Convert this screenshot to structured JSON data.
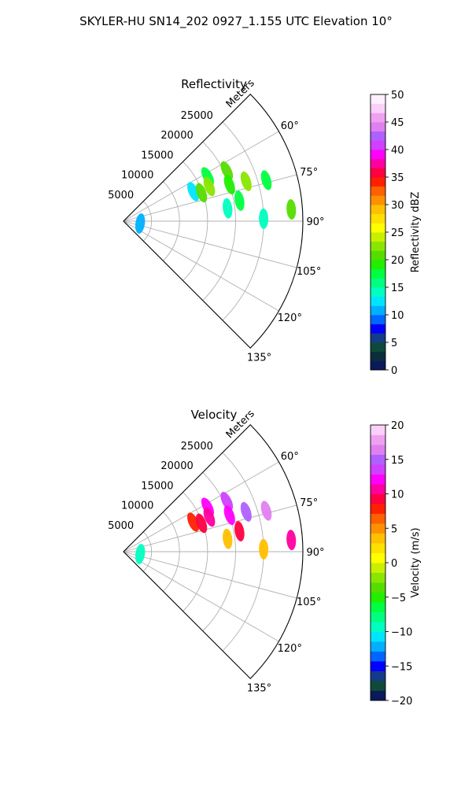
{
  "figure": {
    "title": "SKYLER-HU  SN14_202  0927_1.155 UTC Elevation 10°"
  },
  "chart_data": [
    {
      "type": "heatmap",
      "subtype": "polar-sector (PPI)",
      "title": "Reflectivity",
      "radial_label": "Meters",
      "theta_range_deg": [
        45,
        135
      ],
      "r_max": 32000,
      "radial_ticks": [
        5000,
        10000,
        15000,
        20000,
        25000
      ],
      "radial_tick_labels": [
        "5000",
        "10000",
        "15000",
        "20000",
        "25000"
      ],
      "angle_ticks": [
        45,
        60,
        75,
        90,
        105,
        120,
        135
      ],
      "angle_tick_labels": [
        "",
        "60°",
        "75°",
        "90°",
        "105°",
        "120°",
        "135°"
      ],
      "grid": true,
      "colorbar": {
        "label": "Reflectivity dBZ",
        "min": 0,
        "max": 50,
        "ticks": [
          0,
          5,
          10,
          15,
          20,
          25,
          30,
          35,
          40,
          45,
          50
        ],
        "tick_labels": [
          "0",
          "5",
          "10",
          "15",
          "20",
          "25",
          "30",
          "35",
          "40",
          "45",
          "50"
        ]
      },
      "echoes": [
        {
          "az": 62,
          "r": 17000,
          "value": 18
        },
        {
          "az": 64,
          "r": 20500,
          "value": 20
        },
        {
          "az": 67,
          "r": 13500,
          "value": 12
        },
        {
          "az": 68,
          "r": 16500,
          "value": 22
        },
        {
          "az": 70,
          "r": 14800,
          "value": 20
        },
        {
          "az": 71,
          "r": 20000,
          "value": 19
        },
        {
          "az": 72,
          "r": 23000,
          "value": 22
        },
        {
          "az": 74,
          "r": 26500,
          "value": 17
        },
        {
          "az": 80,
          "r": 21000,
          "value": 18
        },
        {
          "az": 83,
          "r": 18700,
          "value": 14
        },
        {
          "az": 86,
          "r": 30000,
          "value": 21
        },
        {
          "az": 89,
          "r": 25000,
          "value": 14
        },
        {
          "az": 98,
          "r": 3000,
          "value": 10
        }
      ]
    },
    {
      "type": "heatmap",
      "subtype": "polar-sector (PPI)",
      "title": "Velocity",
      "radial_label": "Meters",
      "theta_range_deg": [
        45,
        135
      ],
      "r_max": 32000,
      "radial_ticks": [
        5000,
        10000,
        15000,
        20000,
        25000
      ],
      "radial_tick_labels": [
        "5000",
        "10000",
        "15000",
        "20000",
        "25000"
      ],
      "angle_ticks": [
        45,
        60,
        75,
        90,
        105,
        120,
        135
      ],
      "angle_tick_labels": [
        "",
        "60°",
        "75°",
        "90°",
        "105°",
        "120°",
        "135°"
      ],
      "grid": true,
      "colorbar": {
        "label": "Velocity (m/s)",
        "min": -20,
        "max": 20,
        "ticks": [
          -20,
          -15,
          -10,
          -5,
          0,
          5,
          10,
          15,
          20
        ],
        "tick_labels": [
          "−20",
          "−15",
          "−10",
          "−5",
          "0",
          "5",
          "10",
          "15",
          "20"
        ]
      },
      "echoes": [
        {
          "az": 62,
          "r": 17000,
          "value": 12
        },
        {
          "az": 64,
          "r": 20500,
          "value": 14
        },
        {
          "az": 67,
          "r": 13500,
          "value": 8
        },
        {
          "az": 68,
          "r": 16500,
          "value": 11
        },
        {
          "az": 70,
          "r": 14800,
          "value": 9
        },
        {
          "az": 71,
          "r": 20000,
          "value": 12
        },
        {
          "az": 72,
          "r": 23000,
          "value": 15
        },
        {
          "az": 74,
          "r": 26500,
          "value": 16
        },
        {
          "az": 80,
          "r": 21000,
          "value": 9
        },
        {
          "az": 83,
          "r": 18700,
          "value": 3
        },
        {
          "az": 86,
          "r": 30000,
          "value": 10
        },
        {
          "az": 89,
          "r": 25000,
          "value": 3
        },
        {
          "az": 98,
          "r": 3000,
          "value": -10
        }
      ]
    }
  ],
  "colors": {
    "grid": "#b0b0b0",
    "frame": "#000000",
    "reflectivity_cmap": [
      "#0a1a5a",
      "#0b2f3a",
      "#0e4a3a",
      "#163a8a",
      "#0000ff",
      "#0066ff",
      "#00b0ff",
      "#00e5ff",
      "#00ffc0",
      "#00ff80",
      "#00ff40",
      "#22ee00",
      "#55dd00",
      "#8ae600",
      "#c8f000",
      "#ffff00",
      "#ffe000",
      "#ffc000",
      "#ff9000",
      "#ff6000",
      "#ff2000",
      "#ff0040",
      "#ff00a0",
      "#ff00ff",
      "#d040ff",
      "#b060ff",
      "#e080f0",
      "#f0a0f0",
      "#fad0fa",
      "#fff0ff"
    ],
    "velocity_cmap": [
      "#0a1a5a",
      "#0e4a3a",
      "#163a8a",
      "#0000ff",
      "#0066ff",
      "#00b0ff",
      "#00e5ff",
      "#00ffc0",
      "#00ff80",
      "#00ff40",
      "#22ee00",
      "#55dd00",
      "#8ae600",
      "#c8f000",
      "#ffff00",
      "#ffe000",
      "#ffc000",
      "#ff9000",
      "#ff6000",
      "#ff2000",
      "#ff0040",
      "#ff00a0",
      "#ff00ff",
      "#d040ff",
      "#b060ff",
      "#e080f0",
      "#f0a0f0",
      "#fad0fa"
    ]
  }
}
